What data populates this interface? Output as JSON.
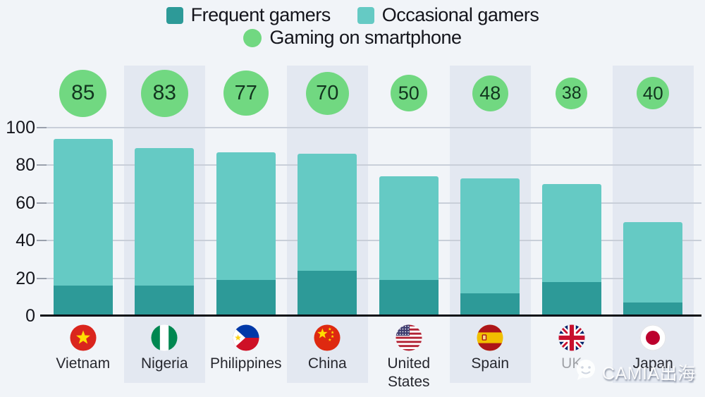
{
  "legend": [
    {
      "label": "Frequent gamers",
      "color": "#2d9a98",
      "shape": "square"
    },
    {
      "label": "Occasional gamers",
      "color": "#65cac4",
      "shape": "square"
    },
    {
      "label": "Gaming on smartphone",
      "color": "#71d881",
      "shape": "circle"
    }
  ],
  "watermark": {
    "text": "CAMIA出海",
    "icon": "chat-bubble-icon"
  },
  "chart_data": {
    "type": "bar",
    "stacked": true,
    "categories": [
      "Vietnam",
      "Nigeria",
      "Philippines",
      "China",
      "United States",
      "Spain",
      "UK",
      "Japan"
    ],
    "flags": [
      "vietnam",
      "nigeria",
      "philippines",
      "china",
      "united-states",
      "spain",
      "uk",
      "japan"
    ],
    "series": [
      {
        "name": "Frequent gamers",
        "color": "#2d9a98",
        "values": [
          16,
          16,
          19,
          24,
          19,
          12,
          18,
          7
        ]
      },
      {
        "name": "Occasional gamers",
        "color": "#65cac4",
        "values": [
          78,
          73,
          68,
          62,
          55,
          61,
          52,
          43
        ]
      }
    ],
    "stack_totals": [
      94,
      89,
      87,
      86,
      74,
      73,
      70,
      50
    ],
    "bubbles": {
      "name": "Gaming on smartphone",
      "color": "#71d881",
      "values": [
        85,
        83,
        77,
        70,
        50,
        48,
        38,
        40
      ]
    },
    "xlabel": "",
    "ylabel": "",
    "ylim": [
      0,
      100
    ],
    "yticks": [
      0,
      20,
      40,
      60,
      80,
      100
    ],
    "grid": true,
    "legend_position": "top",
    "faded_labels": [
      "UK"
    ]
  }
}
